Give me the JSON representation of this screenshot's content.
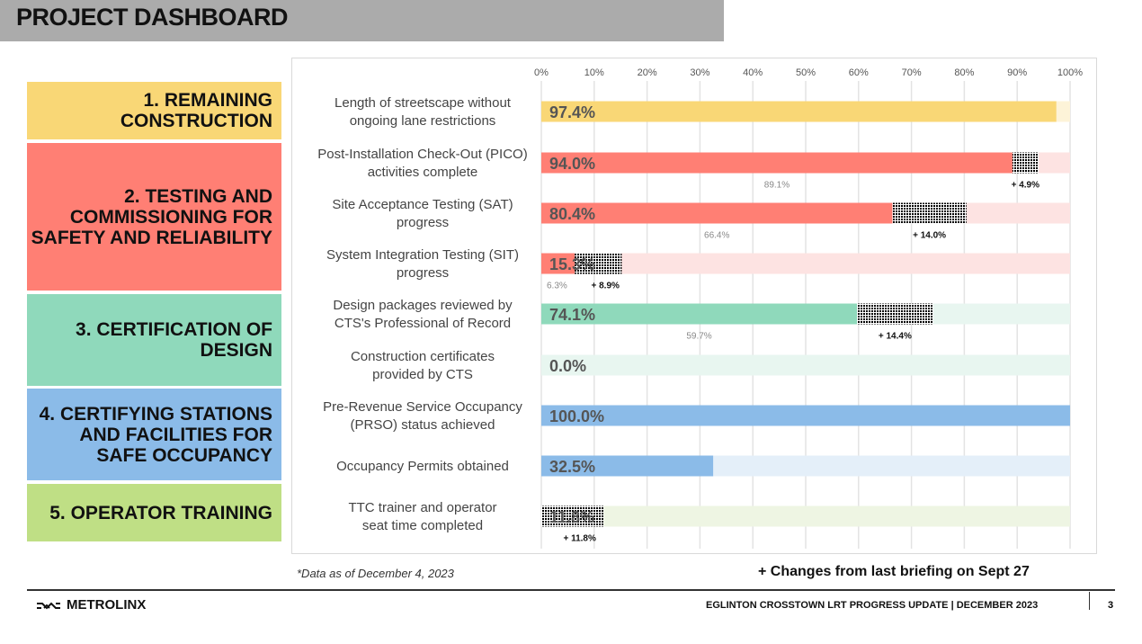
{
  "header": {
    "title": "PROJECT DASHBOARD"
  },
  "categories": [
    {
      "label": "1.  REMAINING CONSTRUCTION",
      "color": "#f9d776"
    },
    {
      "label": "2. TESTING AND COMMISSIONING FOR SAFETY AND RELIABILITY",
      "color": "#ff7f74"
    },
    {
      "label": "3. CERTIFICATION OF DESIGN",
      "color": "#8fd9bb"
    },
    {
      "label": "4. CERTIFYING STATIONS AND FACILITIES FOR SAFE OCCUPANCY",
      "color": "#8bbbe8"
    },
    {
      "label": "5.  OPERATOR TRAINING",
      "color": "#bfdf85"
    }
  ],
  "chart_data": {
    "type": "bar",
    "orientation": "horizontal",
    "xlim": [
      0,
      100
    ],
    "x_ticks": [
      "0%",
      "10%",
      "20%",
      "30%",
      "40%",
      "50%",
      "60%",
      "70%",
      "80%",
      "90%",
      "100%"
    ],
    "grid": true,
    "rows": [
      {
        "label": [
          "Length of streetscape without",
          "ongoing lane restrictions"
        ],
        "value": 97.4,
        "value_label": "97.4%",
        "previous": 97.4,
        "previous_label": null,
        "change": 0,
        "change_label": null,
        "category": 0
      },
      {
        "label": [
          "Post-Installation Check-Out (PICO)",
          "activities complete"
        ],
        "value": 94.0,
        "value_label": "94.0%",
        "previous": 89.1,
        "previous_label": "89.1%",
        "change": 4.9,
        "change_label": "+ 4.9%",
        "category": 1
      },
      {
        "label": [
          "Site Acceptance Testing (SAT)",
          "progress"
        ],
        "value": 80.4,
        "value_label": "80.4%",
        "previous": 66.4,
        "previous_label": "66.4%",
        "change": 14.0,
        "change_label": "+ 14.0%",
        "category": 1
      },
      {
        "label": [
          "System Integration Testing (SIT)",
          "progress"
        ],
        "value": 15.3,
        "value_label": "15.3%",
        "previous": 6.3,
        "previous_label": "6.3%",
        "change": 8.9,
        "change_label": "+ 8.9%",
        "category": 1
      },
      {
        "label": [
          "Design packages reviewed by",
          "CTS's Professional of Record"
        ],
        "value": 74.1,
        "value_label": "74.1%",
        "previous": 59.7,
        "previous_label": "59.7%",
        "change": 14.4,
        "change_label": "+ 14.4%",
        "category": 2
      },
      {
        "label": [
          "Construction certificates",
          "provided by CTS"
        ],
        "value": 0.0,
        "value_label": "0.0%",
        "previous": 0,
        "previous_label": null,
        "change": 0,
        "change_label": null,
        "category": 2
      },
      {
        "label": [
          "Pre-Revenue Service Occupancy",
          "(PRSO) status achieved"
        ],
        "value": 100.0,
        "value_label": "100.0%",
        "previous": 100,
        "previous_label": null,
        "change": 0,
        "change_label": null,
        "category": 3
      },
      {
        "label": [
          "Occupancy Permits obtained"
        ],
        "value": 32.5,
        "value_label": "32.5%",
        "previous": 32.5,
        "previous_label": null,
        "change": 0,
        "change_label": null,
        "category": 3
      },
      {
        "label": [
          "TTC trainer and operator",
          "seat time completed"
        ],
        "value": 11.8,
        "value_label": "11.8%",
        "previous": 0,
        "previous_label": null,
        "change": 11.8,
        "change_label": "+ 11.8%",
        "category": 4
      }
    ],
    "pale_colors": [
      "#fdf3d8",
      "#fde3e2",
      "#e8f6f0",
      "#e4eff9",
      "#eef5e3"
    ]
  },
  "footer": {
    "note": "*Data as of December 4, 2023",
    "changes": "+ Changes from last briefing on Sept 27",
    "logo": "METROLINX",
    "report": "EGLINTON CROSSTOWN LRT PROGRESS UPDATE | DECEMBER 2023",
    "page": "3"
  }
}
